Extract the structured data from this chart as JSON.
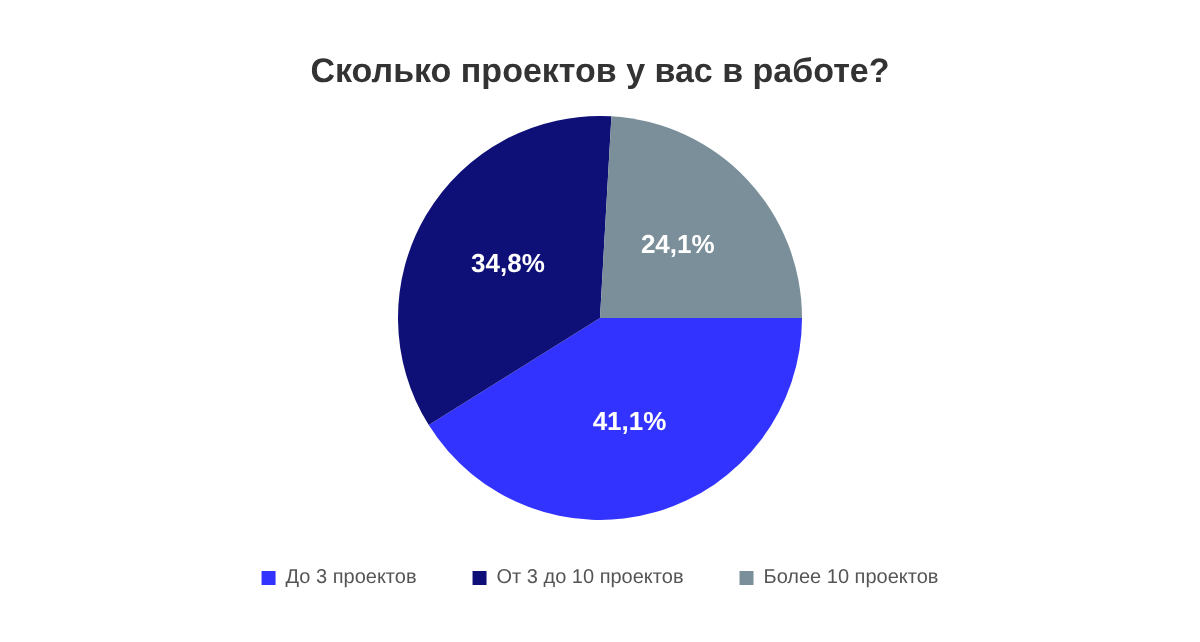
{
  "chart_data": {
    "type": "pie",
    "title": "Сколько проектов у вас в работе?",
    "categories": [
      "До 3 проектов",
      "От 3 до 10 проектов",
      "Более 10 проектов"
    ],
    "values": [
      41.1,
      34.8,
      24.1
    ],
    "value_labels": [
      "41,1%",
      "34,8%",
      "24,1%"
    ],
    "colors": [
      "#3333ff",
      "#0f0f78",
      "#7a8f99"
    ],
    "legend": "bottom"
  }
}
